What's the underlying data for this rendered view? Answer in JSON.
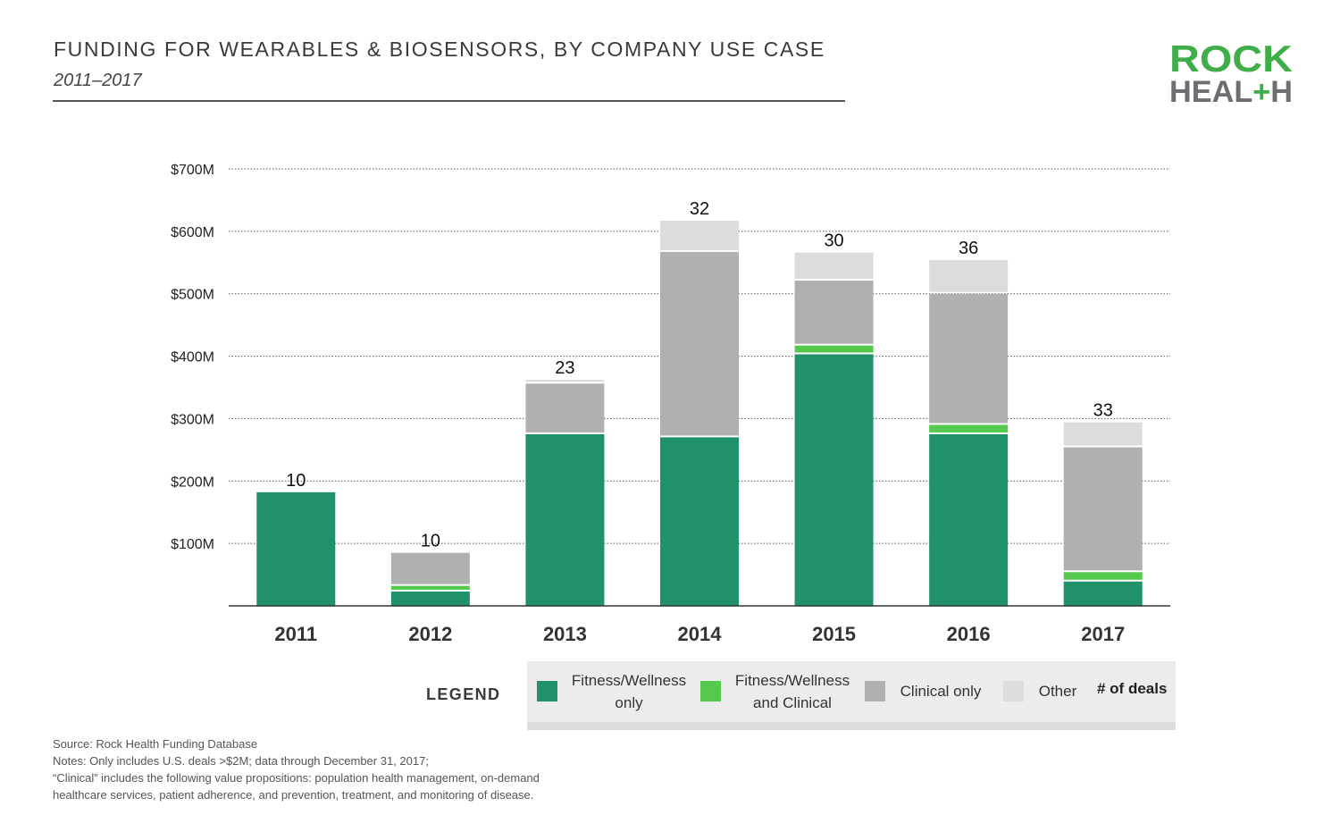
{
  "header": {
    "title": "FUNDING FOR WEARABLES & BIOSENSORS, BY COMPANY USE CASE",
    "subtitle": "2011–2017"
  },
  "logo": {
    "line1": "ROCK",
    "line2": "HEAL+H",
    "green": "#3fae49",
    "gray": "#6d6e71"
  },
  "colors": {
    "fitness_only": "#21916a",
    "fitness_clinical": "#55c94d",
    "clinical_only": "#b0b0b0",
    "other": "#dcdcdc"
  },
  "chart_data": {
    "type": "bar",
    "stacked": true,
    "title": "FUNDING FOR WEARABLES & BIOSENSORS, BY COMPANY USE CASE",
    "subtitle": "2011–2017",
    "categories": [
      "2011",
      "2012",
      "2013",
      "2014",
      "2015",
      "2016",
      "2017"
    ],
    "series": [
      {
        "name": "Fitness/Wellness only",
        "key": "fitness_only",
        "values": [
          182,
          23,
          275,
          270,
          403,
          275,
          39
        ]
      },
      {
        "name": "Fitness/Wellness and Clinical",
        "key": "fitness_clinical",
        "values": [
          0,
          9,
          0,
          0,
          14,
          15,
          15
        ]
      },
      {
        "name": "Clinical only",
        "key": "clinical_only",
        "values": [
          0,
          53,
          81,
          297,
          104,
          210,
          200
        ]
      },
      {
        "name": "Other",
        "key": "other",
        "values": [
          0,
          0,
          6,
          50,
          45,
          54,
          40
        ]
      }
    ],
    "deal_counts": [
      "10",
      "10",
      "23",
      "32",
      "30",
      "36",
      "33"
    ],
    "yticks": [
      {
        "value": 100,
        "label": "$100M"
      },
      {
        "value": 200,
        "label": "$200M"
      },
      {
        "value": 300,
        "label": "$300M"
      },
      {
        "value": 400,
        "label": "$400M"
      },
      {
        "value": 500,
        "label": "$500M"
      },
      {
        "value": 600,
        "label": "$600M"
      },
      {
        "value": 700,
        "label": "$700M"
      }
    ],
    "ylim": [
      0,
      700
    ],
    "xlabel": "",
    "ylabel": "",
    "grid": true
  },
  "legend": {
    "title": "LEGEND",
    "fitness_only": [
      "Fitness/Wellness",
      "only"
    ],
    "fitness_clinical": [
      "Fitness/Wellness",
      "and Clinical"
    ],
    "clinical_only": "Clinical only",
    "other": "Other",
    "deals": "# of deals"
  },
  "notes": {
    "source": "Source: Rock Health Funding Database",
    "line1": "Notes: Only includes U.S. deals >$2M; data through December 31, 2017;",
    "line2": "“Clinical” includes the following value propositions: population health management, on-demand",
    "line3": "healthcare services, patient adherence, and prevention, treatment, and monitoring of disease."
  }
}
